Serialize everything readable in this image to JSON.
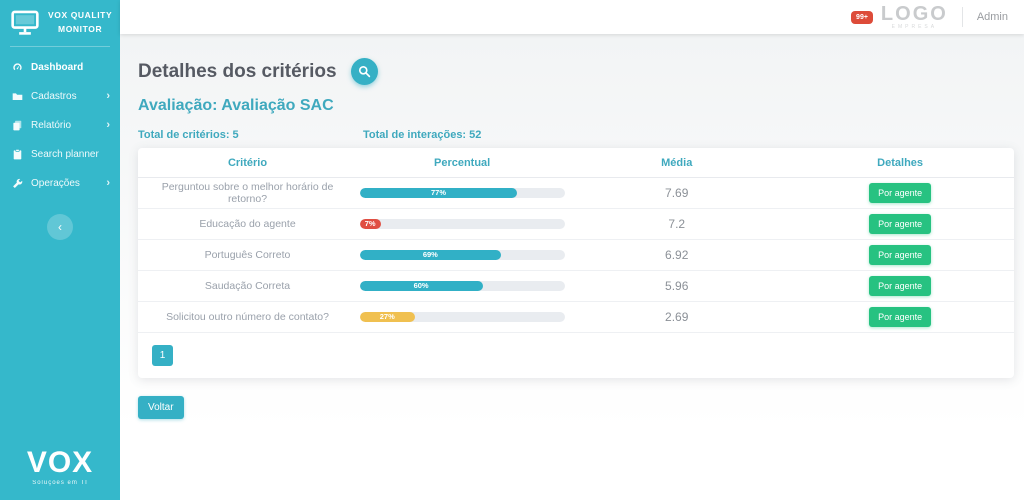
{
  "colors": {
    "sidebar": "#35b8cb",
    "accent": "#35b0c5",
    "teal_text": "#3fa9be",
    "green": "#27c281",
    "red": "#e04f43",
    "yellow": "#f0c050",
    "teal_bar": "#31b0c6"
  },
  "sidebar": {
    "brand": {
      "line1": "VOX QUALITY",
      "line2": "MONITOR"
    },
    "items": [
      {
        "label": "Dashboard",
        "icon": "dashboard-icon",
        "chevron": false,
        "active": true
      },
      {
        "label": "Cadastros",
        "icon": "folder-icon",
        "chevron": true,
        "active": false
      },
      {
        "label": "Relatório",
        "icon": "report-icon",
        "chevron": true,
        "active": false
      },
      {
        "label": "Search planner",
        "icon": "clipboard-icon",
        "chevron": false,
        "active": false
      },
      {
        "label": "Operações",
        "icon": "wrench-icon",
        "chevron": true,
        "active": false
      }
    ],
    "collapse_glyph": "‹",
    "footer": {
      "logo": "VOX",
      "tagline": "Soluções em TI"
    }
  },
  "topbar": {
    "badge": "99+",
    "logo": "LOGO",
    "logo_sub": "EMPRESA",
    "user": "Admin"
  },
  "main": {
    "title": "Detalhes dos critérios",
    "subtitle": "Avaliação: Avaliação SAC",
    "total_criterios": "Total de critérios: 5",
    "total_interacoes": "Total de interações: 52",
    "voltar_label": "Voltar",
    "pagination": [
      "1"
    ]
  },
  "table": {
    "headers": [
      "Critério",
      "Percentual",
      "Média",
      "Detalhes"
    ],
    "action_label": "Por agente",
    "rows": [
      {
        "criterio": "Perguntou sobre o melhor horário de retorno?",
        "percent": 77,
        "percent_label": "77%",
        "bar_color": "#31b0c6",
        "media": "7.69"
      },
      {
        "criterio": "Educação do agente",
        "percent": 7,
        "percent_label": "7%",
        "bar_color": "#e04f43",
        "media": "7.2"
      },
      {
        "criterio": "Português Correto",
        "percent": 69,
        "percent_label": "69%",
        "bar_color": "#31b0c6",
        "media": "6.92"
      },
      {
        "criterio": "Saudação Correta",
        "percent": 60,
        "percent_label": "60%",
        "bar_color": "#31b0c6",
        "media": "5.96"
      },
      {
        "criterio": "Solicitou outro número de contato?",
        "percent": 27,
        "percent_label": "27%",
        "bar_color": "#f0c050",
        "media": "2.69"
      }
    ]
  }
}
